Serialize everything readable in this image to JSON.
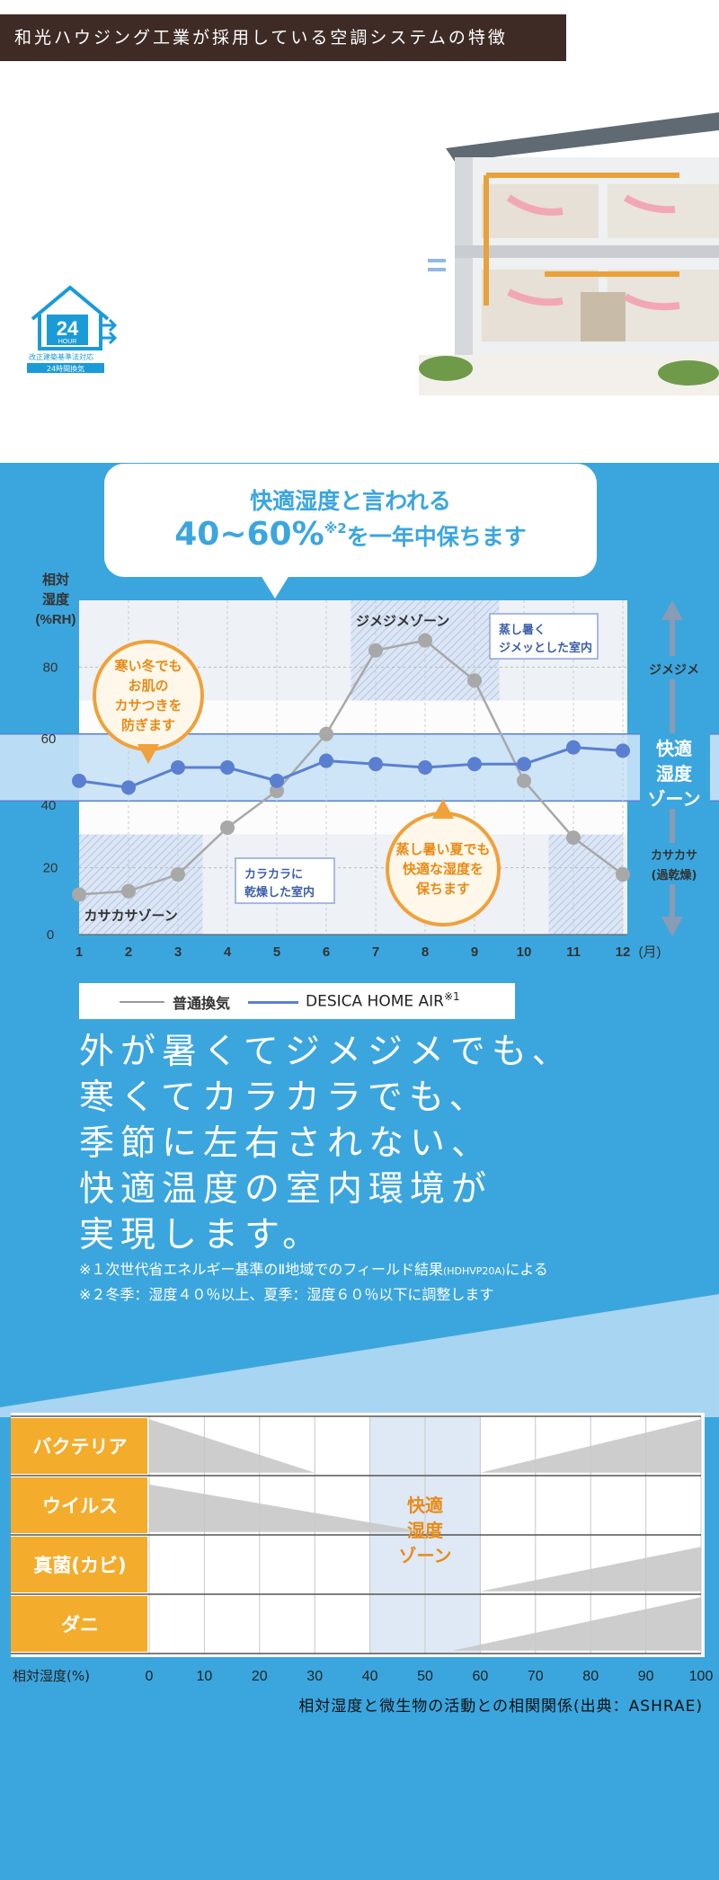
{
  "header": {
    "title": "和光ハウジング工業が採用している空調システムの特徴"
  },
  "logo": {
    "number": "24",
    "word": "HOUR",
    "caption": "改正建築基準法対応",
    "sub": "24時間換気"
  },
  "bubble": {
    "line1": "快適湿度と言われる",
    "line2_main": "40~60%",
    "line2_sup": "※2",
    "line2_rest": "を一年中保ちます"
  },
  "chart_data": [
    {
      "type": "line",
      "ylabel_lines": [
        "相対",
        "湿度",
        "(%RH)"
      ],
      "xunit": "(月)",
      "categories": [
        "1",
        "2",
        "3",
        "4",
        "5",
        "6",
        "7",
        "8",
        "9",
        "10",
        "11",
        "12"
      ],
      "yticks": [
        "0",
        "20",
        "40",
        "60",
        "80"
      ],
      "ylim": [
        0,
        100
      ],
      "comfort_band": [
        40,
        60
      ],
      "series": [
        {
          "name": "普通換気",
          "color": "#a8a8a8",
          "values": [
            12,
            13,
            18,
            32,
            43,
            60,
            85,
            88,
            76,
            46,
            29,
            18
          ]
        },
        {
          "name": "DESICA HOME AIR※1",
          "color": "#5b7fd0",
          "values": [
            46,
            44,
            50,
            50,
            46,
            52,
            51,
            50,
            51,
            51,
            56,
            55
          ]
        }
      ],
      "zones": {
        "jimejime": "ジメジメゾーン",
        "kasakasa": "カサカサゾーン"
      },
      "right_labels": {
        "jimejime": "ジメジメ",
        "comfort": [
          "快適",
          "湿度",
          "ゾーン"
        ],
        "kasakasa": [
          "カサカサ",
          "(過乾燥)"
        ]
      },
      "callouts": {
        "winter": [
          "寒い冬でも",
          "お肌の",
          "カサつきを",
          "防ぎます"
        ],
        "summer": [
          "蒸し暑い夏でも",
          "快適な湿度を",
          "保ちます"
        ],
        "humid_box": [
          "蒸し暑く",
          "ジメッとした室内"
        ],
        "dry_box": [
          "カラカラに",
          "乾燥した室内"
        ]
      },
      "legend": {
        "gray": "普通換気",
        "blue": "DESICA HOME AIR",
        "blue_sup": "※1"
      }
    },
    {
      "type": "area",
      "rows": [
        "バクテリア",
        "ウイルス",
        "真菌(カビ)",
        "ダニ"
      ],
      "x": [
        0,
        10,
        20,
        30,
        40,
        50,
        60,
        70,
        80,
        90,
        100
      ],
      "xlabel": "相対湿度(%)",
      "comfort_zone_label": [
        "快適",
        "湿度",
        "ゾーン"
      ],
      "comfort_range": [
        40,
        60
      ],
      "caption": "相対湿度と微生物の活動との相関関係(出典：ASHRAE)"
    }
  ],
  "main_text": [
    "外が暑くてジメジメでも、",
    "寒くてカラカラでも、",
    "季節に左右されない、",
    "快適温度の室内環境が",
    "実現します。"
  ],
  "notes": {
    "note1_a": "※１次世代省エネルギー基準のⅡ地域でのフィールド結果",
    "note1_b": "(HDHVP20A)",
    "note1_c": "による",
    "note2": "※２冬季：湿度４０％以上、夏季：湿度６０％以下に調整します"
  }
}
